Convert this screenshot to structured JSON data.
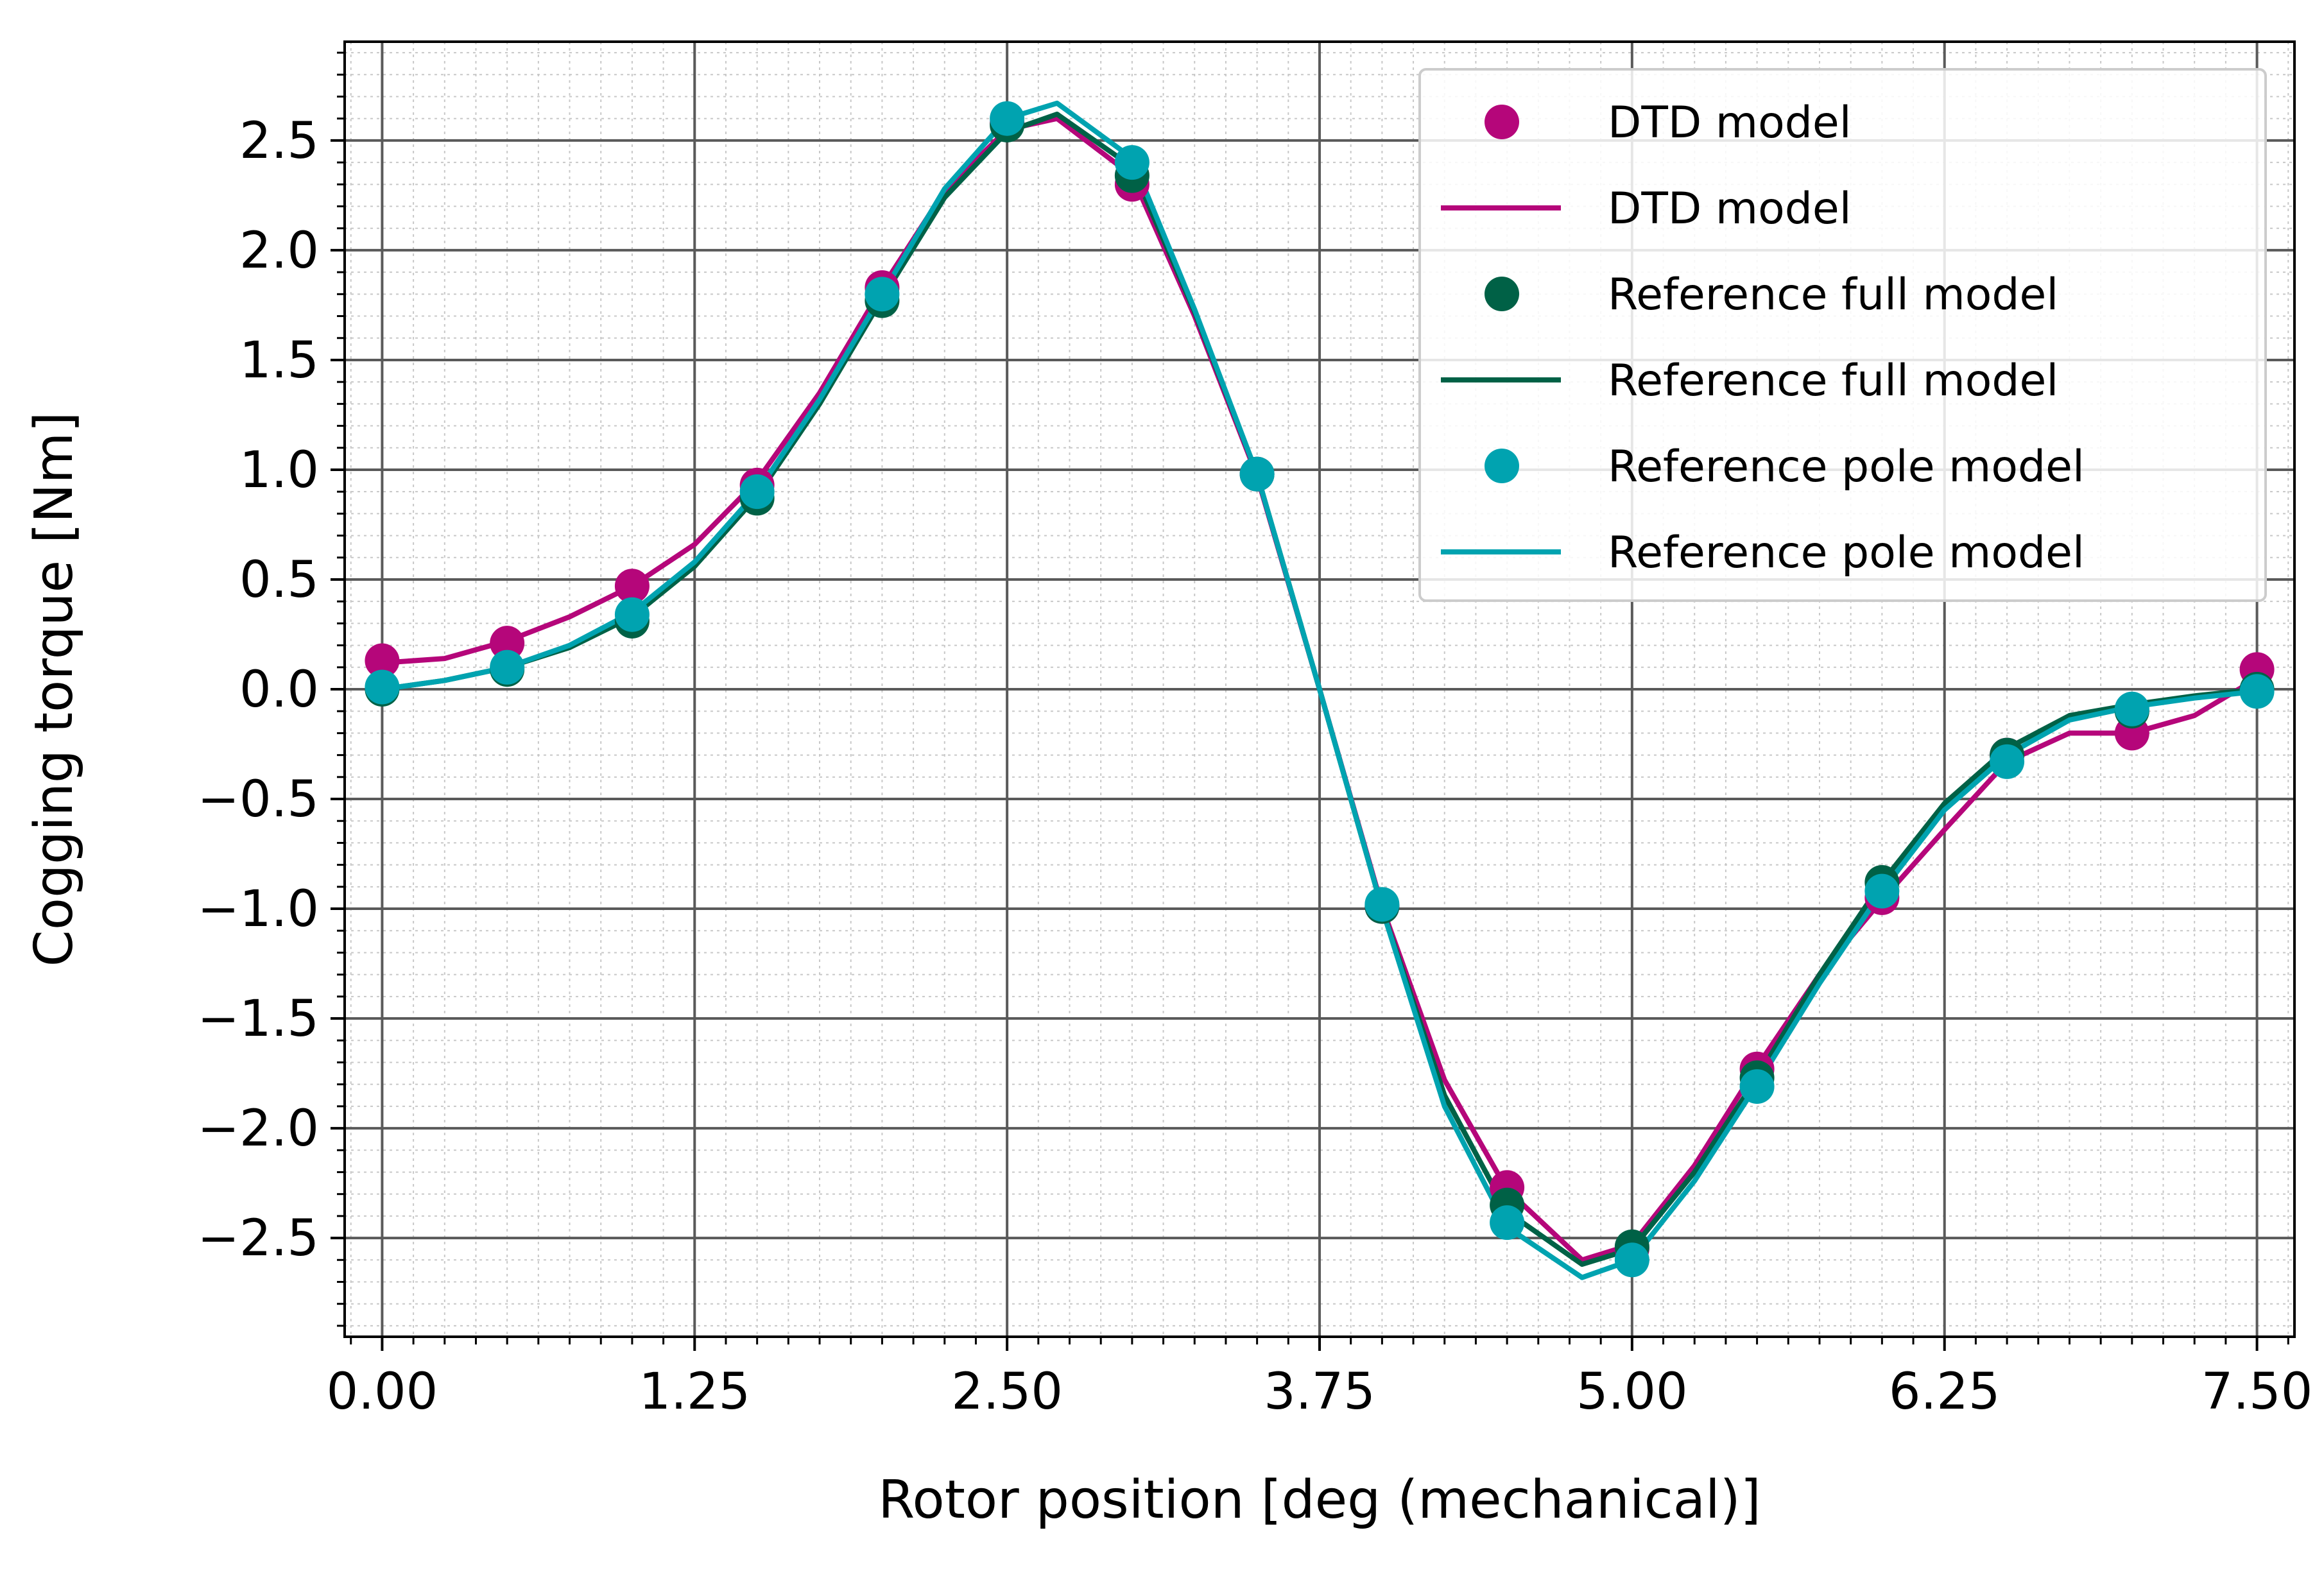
{
  "chart_data": {
    "type": "line",
    "xlabel": "Rotor position [deg (mechanical)]",
    "ylabel": "Cogging torque [Nm]",
    "xlim": [
      -0.15,
      7.65
    ],
    "ylim": [
      -2.95,
      2.95
    ],
    "xticks": [
      0.0,
      1.25,
      2.5,
      3.75,
      5.0,
      6.25,
      7.5
    ],
    "xtick_labels": [
      "0.00",
      "1.25",
      "2.50",
      "3.75",
      "5.00",
      "6.25",
      "7.50"
    ],
    "yticks": [
      -2.5,
      -2.0,
      -1.5,
      -1.0,
      -0.5,
      0.0,
      0.5,
      1.0,
      1.5,
      2.0,
      2.5
    ],
    "ytick_labels": [
      "−2.5",
      "−2.0",
      "−1.5",
      "−1.0",
      "−0.5",
      "0.0",
      "0.5",
      "1.0",
      "1.5",
      "2.0",
      "2.5"
    ],
    "grid": true,
    "minor_grid": true,
    "legend_position": "top-right",
    "series": [
      {
        "name": "DTD model",
        "kind": "scatter",
        "color": "#b5067a",
        "x": [
          0.0,
          0.5,
          1.0,
          1.5,
          2.0,
          2.5,
          3.0,
          3.5,
          4.0,
          4.5,
          5.0,
          5.5,
          6.0,
          6.5,
          7.0,
          7.5
        ],
        "y": [
          0.13,
          0.21,
          0.47,
          0.93,
          1.83,
          2.58,
          2.3,
          0.98,
          -0.99,
          -2.27,
          -2.55,
          -1.73,
          -0.95,
          -0.3,
          -0.2,
          0.09
        ]
      },
      {
        "name": "DTD model",
        "kind": "line",
        "color": "#b5067a",
        "x": [
          0.0,
          0.25,
          0.5,
          0.75,
          1.0,
          1.25,
          1.5,
          1.75,
          2.0,
          2.25,
          2.5,
          2.7,
          3.0,
          3.25,
          3.5,
          3.75,
          4.0,
          4.25,
          4.5,
          4.8,
          5.0,
          5.25,
          5.5,
          5.75,
          6.0,
          6.25,
          6.5,
          6.75,
          7.0,
          7.25,
          7.5
        ],
        "y": [
          0.12,
          0.14,
          0.22,
          0.33,
          0.47,
          0.66,
          0.95,
          1.35,
          1.83,
          2.27,
          2.55,
          2.6,
          2.34,
          1.7,
          0.97,
          0.0,
          -0.99,
          -1.78,
          -2.28,
          -2.6,
          -2.53,
          -2.17,
          -1.72,
          -1.3,
          -0.96,
          -0.64,
          -0.33,
          -0.2,
          -0.2,
          -0.12,
          0.05
        ]
      },
      {
        "name": "Reference full model",
        "kind": "scatter",
        "color": "#006146",
        "x": [
          0.0,
          0.5,
          1.0,
          1.5,
          2.0,
          2.5,
          3.0,
          3.5,
          4.0,
          4.5,
          5.0,
          5.5,
          6.0,
          6.5,
          7.0,
          7.5
        ],
        "y": [
          0.0,
          0.09,
          0.31,
          0.87,
          1.77,
          2.57,
          2.34,
          0.98,
          -0.99,
          -2.35,
          -2.54,
          -1.77,
          -0.88,
          -0.3,
          -0.1,
          0.0
        ]
      },
      {
        "name": "Reference full model",
        "kind": "line",
        "color": "#006146",
        "x": [
          0.0,
          0.25,
          0.5,
          0.75,
          1.0,
          1.25,
          1.5,
          1.75,
          2.0,
          2.25,
          2.5,
          2.7,
          3.0,
          3.25,
          3.5,
          3.75,
          4.0,
          4.25,
          4.5,
          4.8,
          5.0,
          5.25,
          5.5,
          5.75,
          6.0,
          6.25,
          6.5,
          6.75,
          7.0,
          7.25,
          7.5
        ],
        "y": [
          0.0,
          0.04,
          0.1,
          0.19,
          0.33,
          0.56,
          0.88,
          1.3,
          1.78,
          2.24,
          2.54,
          2.62,
          2.38,
          1.72,
          0.98,
          0.0,
          -1.0,
          -1.85,
          -2.38,
          -2.62,
          -2.55,
          -2.2,
          -1.77,
          -1.3,
          -0.88,
          -0.52,
          -0.27,
          -0.12,
          -0.07,
          -0.03,
          0.0
        ]
      },
      {
        "name": "Reference pole model",
        "kind": "scatter",
        "color": "#00a3b0",
        "x": [
          0.0,
          0.5,
          1.0,
          1.5,
          2.0,
          2.5,
          3.0,
          3.5,
          4.0,
          4.5,
          5.0,
          5.5,
          6.0,
          6.5,
          7.0,
          7.5
        ],
        "y": [
          0.01,
          0.1,
          0.34,
          0.9,
          1.8,
          2.6,
          2.4,
          0.98,
          -0.98,
          -2.43,
          -2.6,
          -1.81,
          -0.92,
          -0.33,
          -0.09,
          -0.01
        ]
      },
      {
        "name": "Reference pole model",
        "kind": "line",
        "color": "#00a3b0",
        "x": [
          0.0,
          0.25,
          0.5,
          0.75,
          1.0,
          1.25,
          1.5,
          1.75,
          2.0,
          2.25,
          2.5,
          2.7,
          3.0,
          3.25,
          3.5,
          3.75,
          4.0,
          4.25,
          4.5,
          4.8,
          5.0,
          5.25,
          5.5,
          5.75,
          6.0,
          6.25,
          6.5,
          6.75,
          7.0,
          7.25,
          7.5
        ],
        "y": [
          0.0,
          0.04,
          0.1,
          0.2,
          0.35,
          0.58,
          0.9,
          1.32,
          1.8,
          2.28,
          2.6,
          2.67,
          2.42,
          1.73,
          0.98,
          0.0,
          -1.0,
          -1.9,
          -2.45,
          -2.68,
          -2.6,
          -2.24,
          -1.8,
          -1.34,
          -0.92,
          -0.55,
          -0.3,
          -0.14,
          -0.08,
          -0.04,
          -0.01
        ]
      }
    ]
  }
}
